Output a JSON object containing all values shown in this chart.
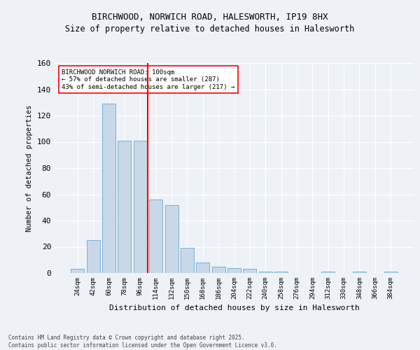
{
  "title_line1": "BIRCHWOOD, NORWICH ROAD, HALESWORTH, IP19 8HX",
  "title_line2": "Size of property relative to detached houses in Halesworth",
  "xlabel": "Distribution of detached houses by size in Halesworth",
  "ylabel": "Number of detached properties",
  "categories": [
    "24sqm",
    "42sqm",
    "60sqm",
    "78sqm",
    "96sqm",
    "114sqm",
    "132sqm",
    "150sqm",
    "168sqm",
    "186sqm",
    "204sqm",
    "222sqm",
    "240sqm",
    "258sqm",
    "276sqm",
    "294sqm",
    "312sqm",
    "330sqm",
    "348sqm",
    "366sqm",
    "384sqm"
  ],
  "values": [
    3,
    25,
    129,
    101,
    101,
    56,
    52,
    19,
    8,
    5,
    4,
    3,
    1,
    1,
    0,
    0,
    1,
    0,
    1,
    0,
    1
  ],
  "bar_color": "#c8d8e8",
  "bar_edge_color": "#7bafd4",
  "ref_line_x": 4.5,
  "ref_line_label": "BIRCHWOOD NORWICH ROAD: 100sqm",
  "ref_line_label2": "← 57% of detached houses are smaller (287)",
  "ref_line_label3": "43% of semi-detached houses are larger (217) →",
  "ref_line_color": "red",
  "ylim": [
    0,
    160
  ],
  "yticks": [
    0,
    20,
    40,
    60,
    80,
    100,
    120,
    140,
    160
  ],
  "background_color": "#eef2f7",
  "grid_color": "#ffffff",
  "footer": "Contains HM Land Registry data © Crown copyright and database right 2025.\nContains public sector information licensed under the Open Government Licence v3.0."
}
